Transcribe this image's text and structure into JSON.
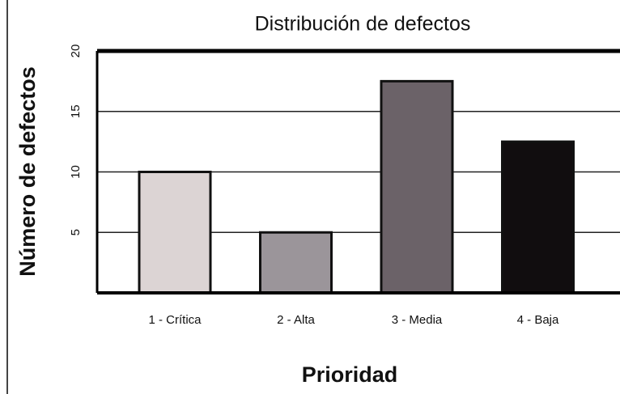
{
  "chart_data": {
    "type": "bar",
    "title": "Distribución de defectos",
    "x_label": "Prioridad",
    "y_label": "Número de defectos",
    "categories": [
      "1 - Crítica",
      "2 - Alta",
      "3 - Media",
      "4 - Baja"
    ],
    "values": [
      10,
      5,
      17.5,
      12.5
    ],
    "colors": [
      "#dcd4d4",
      "#9b959a",
      "#6b6268",
      "#110d0f"
    ],
    "ylim": [
      0,
      20
    ],
    "yticks": [
      5,
      10,
      15,
      20
    ],
    "grid": true
  }
}
